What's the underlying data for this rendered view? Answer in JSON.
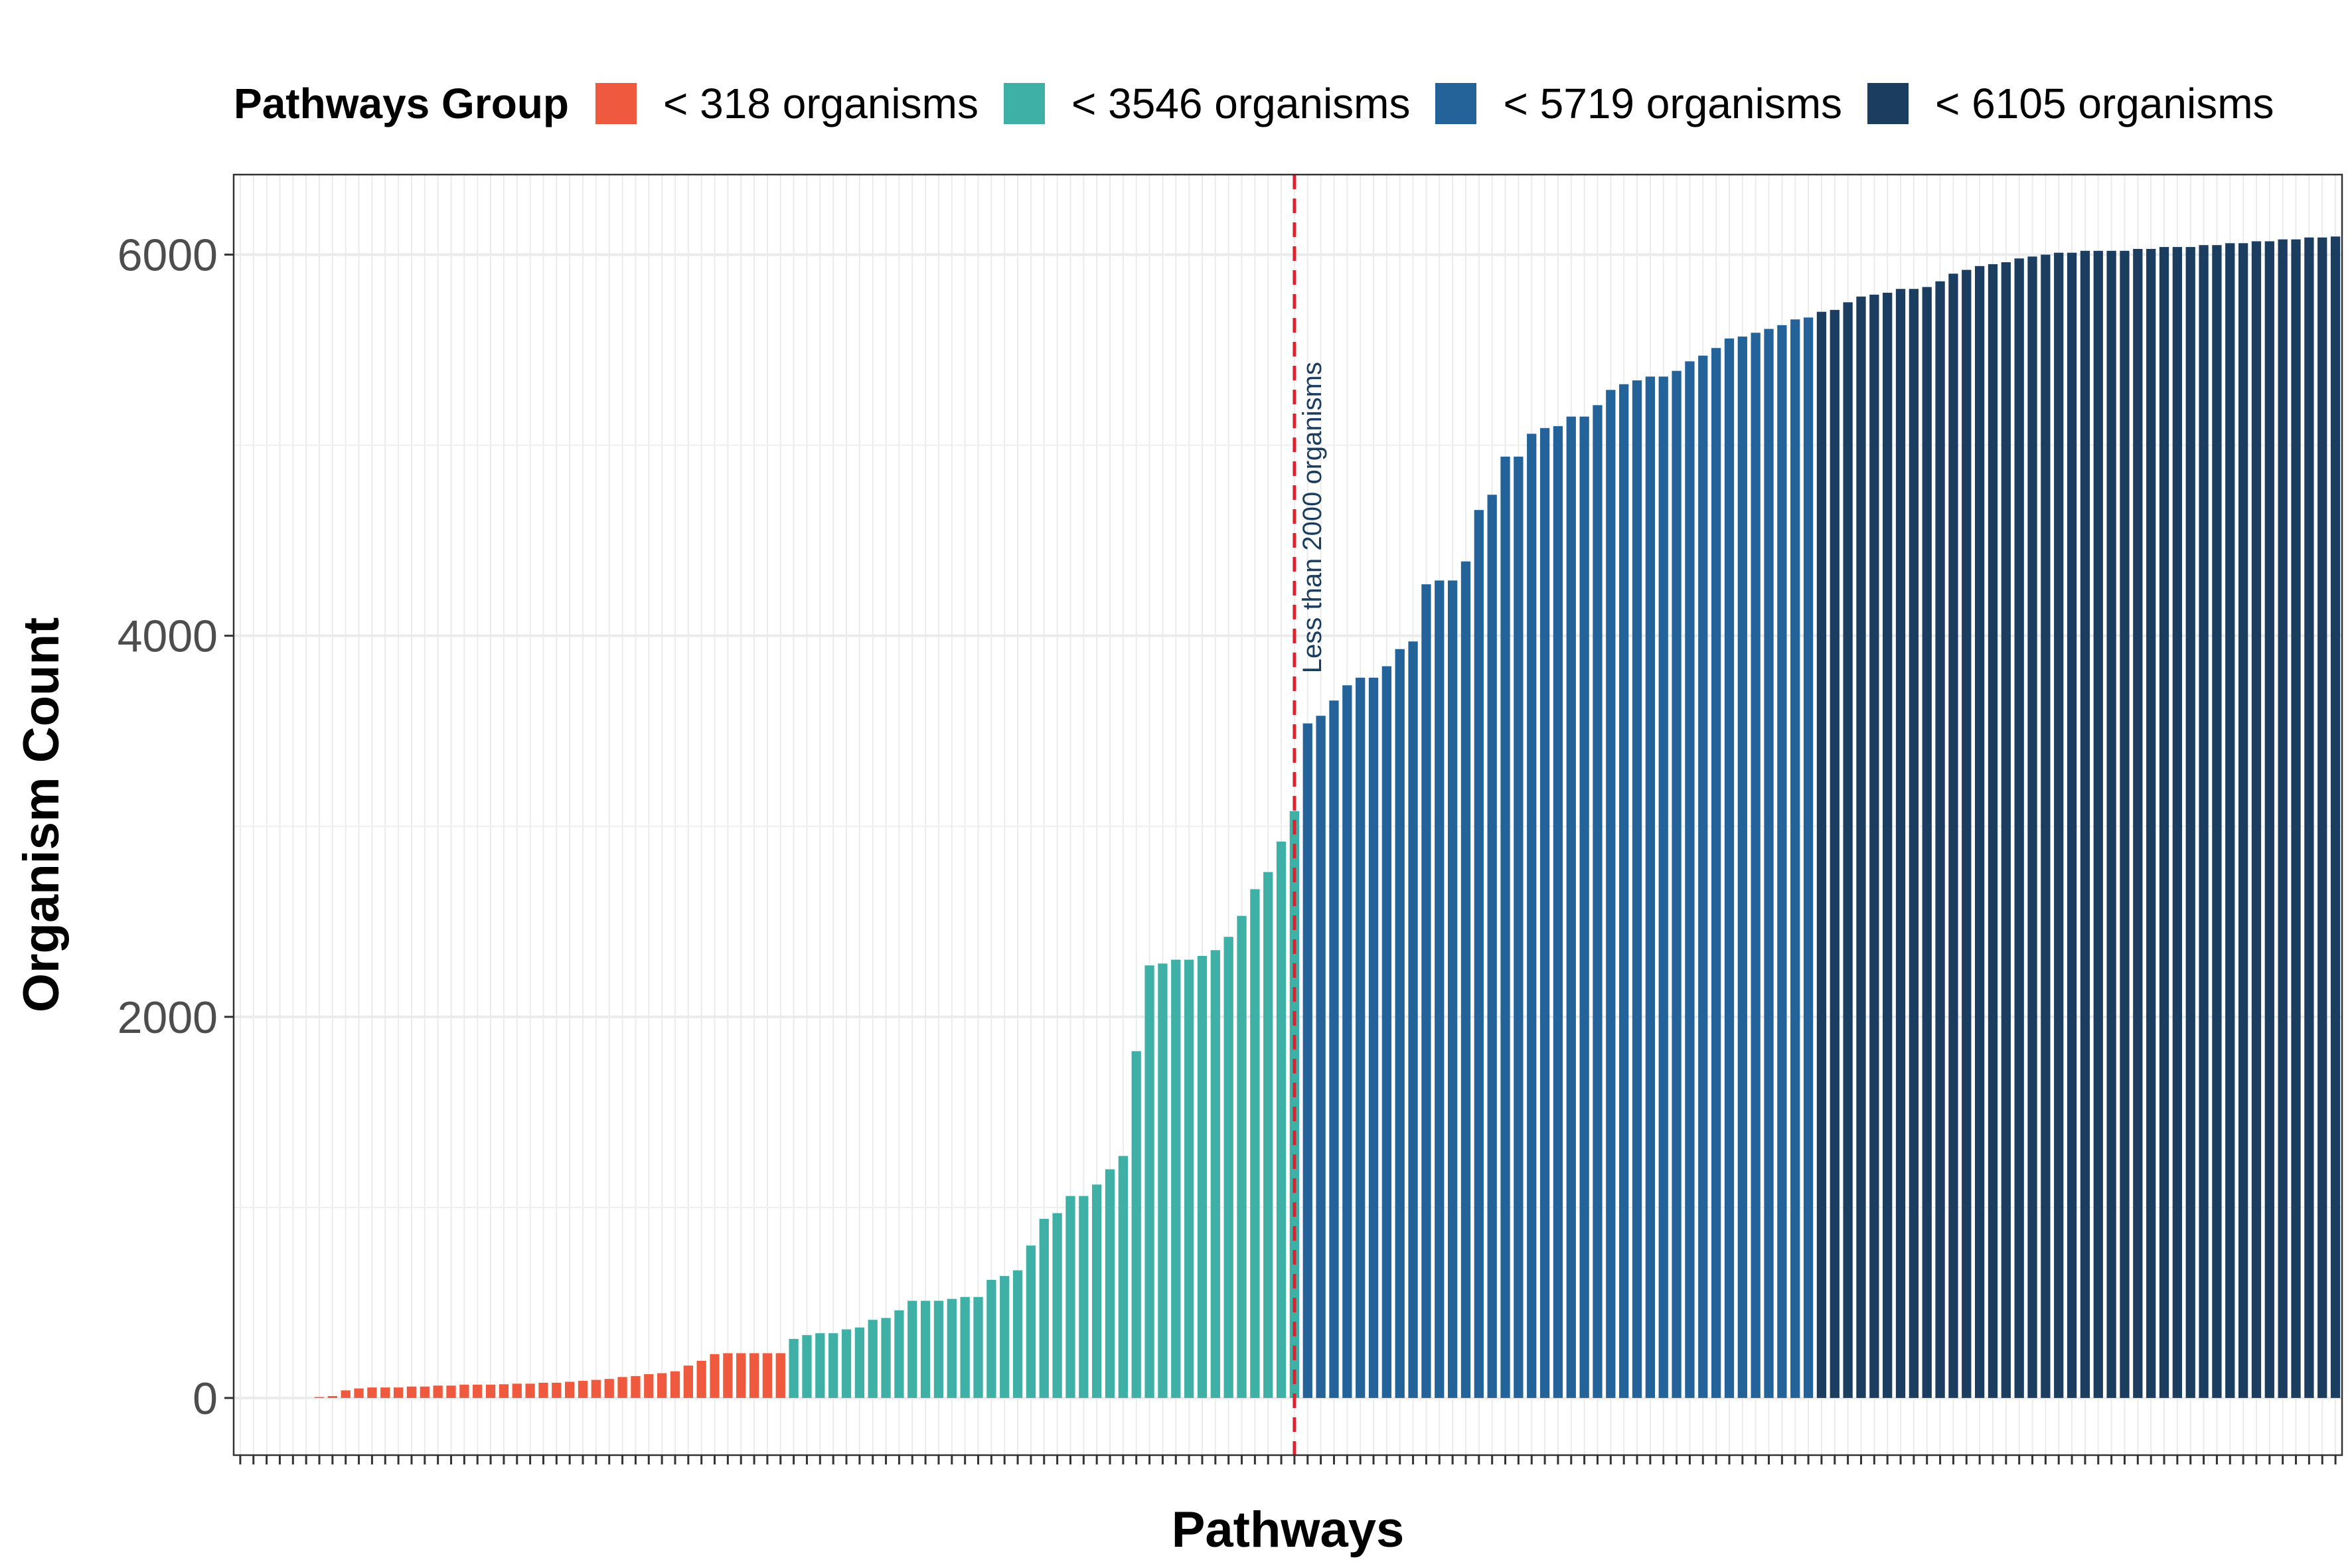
{
  "chart_data": {
    "type": "bar",
    "xlabel": "Pathways",
    "ylabel": "Organism Count",
    "ylim": [
      -300,
      6420
    ],
    "yticks": [
      0,
      2000,
      4000,
      6000
    ],
    "ytick_labels": [
      "0",
      "2000",
      "4000",
      "6000"
    ],
    "grid": true,
    "legend_position": "top",
    "legend": {
      "title": "Pathways Group",
      "entries": [
        {
          "label": "< 318 organisms",
          "color": "#EF5A3E"
        },
        {
          "label": "< 3546 organisms",
          "color": "#3FB0A6"
        },
        {
          "label": "< 5719 organisms",
          "color": "#23639A"
        },
        {
          "label": "< 6105 organisms",
          "color": "#1B3E60"
        }
      ]
    },
    "reference_line": {
      "category_index": 80,
      "color": "#E0202C",
      "style": "dashed",
      "label": "Less than 2000 organisms"
    },
    "series": [
      {
        "name": "< 318 organisms",
        "color": "#EF5A3E",
        "values": [
          0,
          0,
          0,
          0,
          0,
          0,
          5,
          10,
          40,
          50,
          55,
          55,
          55,
          60,
          60,
          65,
          65,
          70,
          70,
          70,
          72,
          75,
          75,
          80,
          80,
          85,
          90,
          95,
          100,
          110,
          115,
          125,
          130,
          140,
          170,
          195,
          230,
          235,
          235,
          235,
          235,
          235
        ]
      },
      {
        "name": "< 3546 organisms",
        "color": "#3FB0A6",
        "values": [
          310,
          330,
          340,
          340,
          360,
          370,
          410,
          420,
          460,
          510,
          510,
          510,
          520,
          530,
          530,
          620,
          640,
          670,
          800,
          940,
          970,
          1060,
          1060,
          1120,
          1200,
          1270,
          1820,
          2270,
          2280,
          2300,
          2300,
          2320,
          2350,
          2420,
          2530,
          2670,
          2760,
          2920,
          3080
        ]
      },
      {
        "name": "< 5719 organisms",
        "color": "#23639A",
        "values": [
          3540,
          3580,
          3660,
          3740,
          3780,
          3780,
          3840,
          3930,
          3970,
          4270,
          4290,
          4290,
          4390,
          4660,
          4740,
          4940,
          4940,
          5060,
          5090,
          5100,
          5150,
          5150,
          5210,
          5290,
          5320,
          5340,
          5360,
          5360,
          5390,
          5440,
          5470,
          5510,
          5560,
          5570,
          5590,
          5610,
          5630,
          5660,
          5670
        ]
      },
      {
        "name": "< 6105 organisms",
        "color": "#1B3E60",
        "values": [
          5700,
          5710,
          5750,
          5780,
          5790,
          5800,
          5820,
          5820,
          5830,
          5860,
          5900,
          5920,
          5940,
          5950,
          5960,
          5980,
          5990,
          6000,
          6010,
          6010,
          6020,
          6020,
          6020,
          6020,
          6030,
          6030,
          6040,
          6040,
          6040,
          6050,
          6050,
          6060,
          6060,
          6070,
          6070,
          6080,
          6080,
          6090,
          6090,
          6095
        ]
      }
    ]
  }
}
